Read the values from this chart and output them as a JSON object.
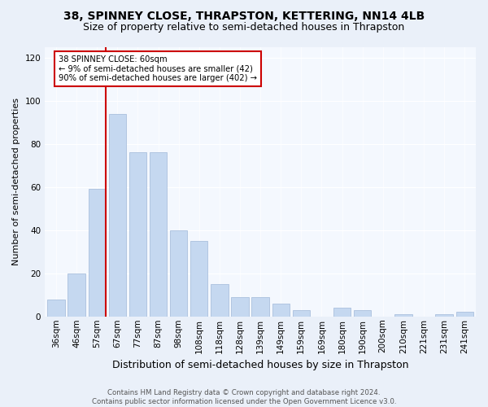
{
  "title": "38, SPINNEY CLOSE, THRAPSTON, KETTERING, NN14 4LB",
  "subtitle": "Size of property relative to semi-detached houses in Thrapston",
  "xlabel": "Distribution of semi-detached houses by size in Thrapston",
  "ylabel": "Number of semi-detached properties",
  "bar_labels": [
    "36sqm",
    "46sqm",
    "57sqm",
    "67sqm",
    "77sqm",
    "87sqm",
    "98sqm",
    "108sqm",
    "118sqm",
    "128sqm",
    "139sqm",
    "149sqm",
    "159sqm",
    "169sqm",
    "180sqm",
    "190sqm",
    "200sqm",
    "210sqm",
    "221sqm",
    "231sqm",
    "241sqm"
  ],
  "bar_values": [
    8,
    20,
    59,
    94,
    76,
    76,
    40,
    35,
    15,
    9,
    9,
    6,
    3,
    0,
    4,
    3,
    0,
    1,
    0,
    1,
    2
  ],
  "bar_color": "#c5d8f0",
  "bar_edge_color": "#a0b8d8",
  "red_line_index": 2,
  "annotation_text": "38 SPINNEY CLOSE: 60sqm\n← 9% of semi-detached houses are smaller (42)\n90% of semi-detached houses are larger (402) →",
  "annotation_box_color": "#ffffff",
  "annotation_box_edge_color": "#cc0000",
  "ylim": [
    0,
    125
  ],
  "yticks": [
    0,
    20,
    40,
    60,
    80,
    100,
    120
  ],
  "title_fontsize": 10,
  "subtitle_fontsize": 9,
  "xlabel_fontsize": 9,
  "ylabel_fontsize": 8,
  "tick_labelsize": 7.5,
  "footer_text": "Contains HM Land Registry data © Crown copyright and database right 2024.\nContains public sector information licensed under the Open Government Licence v3.0.",
  "background_color": "#eaf0f9",
  "plot_background_color": "#f4f8fe"
}
